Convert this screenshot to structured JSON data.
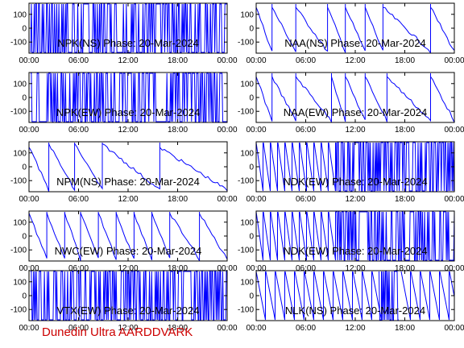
{
  "footer": {
    "text": "Dunedin Ultra AARDDVARK",
    "color": "#cc0000"
  },
  "colors": {
    "trace": "#0000ff",
    "axis": "#000000"
  },
  "chart_data": [
    {
      "type": "line",
      "title": "NPK(NS) Phase: 20-Mar-2024",
      "x_ticks": [
        "00:00",
        "06:00",
        "12:00",
        "18:00",
        "00:00"
      ],
      "y_ticks": [
        "100",
        "0",
        "-100"
      ],
      "ylim": [
        -180,
        180
      ],
      "pattern": "dense",
      "segments": [
        [
          0.03,
          0.5,
          1.0
        ]
      ]
    },
    {
      "type": "line",
      "title": "NAA(NS) Phase: 20-Mar-2024",
      "x_ticks": [
        "00:00",
        "06:00",
        "12:00",
        "18:00",
        "00:00"
      ],
      "y_ticks": [
        "100",
        "0",
        "-100"
      ],
      "ylim": [
        -180,
        180
      ],
      "pattern": "mixed",
      "segments": [
        [
          0.0,
          0.5,
          0.08
        ],
        [
          0.08,
          0.5,
          0.2
        ],
        [
          0.2,
          0.5,
          0.36
        ],
        [
          0.36,
          0.5,
          0.45
        ],
        [
          0.45,
          0.5,
          0.55
        ],
        [
          0.55,
          0.5,
          0.64
        ],
        [
          0.64,
          0.5,
          0.88
        ],
        [
          0.88,
          0.5,
          1.0
        ]
      ]
    },
    {
      "type": "line",
      "title": "NPK(EW) Phase: 20-Mar-2024",
      "x_ticks": [
        "00:00",
        "06:00",
        "12:00",
        "18:00",
        "00:00"
      ],
      "y_ticks": [
        "100",
        "0",
        "-100"
      ],
      "ylim": [
        -180,
        180
      ],
      "pattern": "dense",
      "segments": [
        [
          0.0,
          0.5,
          1.0
        ]
      ]
    },
    {
      "type": "line",
      "title": "NAA(EW) Phase: 20-Mar-2024",
      "x_ticks": [
        "00:00",
        "06:00",
        "12:00",
        "18:00",
        "00:00"
      ],
      "y_ticks": [
        "100",
        "0",
        "-100"
      ],
      "ylim": [
        -180,
        180
      ],
      "pattern": "mixed",
      "segments": [
        [
          0.0,
          0.5,
          0.08
        ],
        [
          0.08,
          0.5,
          0.2
        ],
        [
          0.2,
          0.5,
          0.38
        ],
        [
          0.38,
          0.5,
          0.45
        ],
        [
          0.45,
          0.5,
          0.55
        ],
        [
          0.55,
          0.5,
          0.66
        ],
        [
          0.66,
          0.5,
          0.88
        ],
        [
          0.88,
          0.5,
          1.0
        ]
      ]
    },
    {
      "type": "line",
      "title": "NPM(NS) Phase: 20-Mar-2024",
      "x_ticks": [
        "00:00",
        "06:00",
        "12:00",
        "18:00",
        "00:00"
      ],
      "y_ticks": [
        "100",
        "0",
        "-100"
      ],
      "ylim": [
        -180,
        180
      ],
      "pattern": "sawtooth",
      "segments": [
        [
          0.0,
          0.25,
          0.1
        ],
        [
          0.1,
          0.9,
          0.23
        ],
        [
          0.23,
          0.95,
          0.37
        ],
        [
          0.37,
          0.9,
          0.66
        ],
        [
          0.66,
          0.2,
          1.0
        ]
      ]
    },
    {
      "type": "line",
      "title": "NDK(EW) Phase: 20-Mar-2024",
      "x_ticks": [
        "00:00",
        "06:00",
        "12:00",
        "18:00",
        "00:00"
      ],
      "y_ticks": [
        "100",
        "0",
        "-100"
      ],
      "ylim": [
        -180,
        180
      ],
      "pattern": "sawtooth-dense",
      "segments": [
        [
          0.0,
          0.5,
          0.4
        ],
        [
          0.4,
          0.5,
          1.0
        ]
      ]
    },
    {
      "type": "line",
      "title": "NWC(EW) Phase: 20-Mar-2024",
      "x_ticks": [
        "00:00",
        "06:00",
        "12:00",
        "18:00",
        "00:00"
      ],
      "y_ticks": [
        "100",
        "0",
        "-100"
      ],
      "ylim": [
        -180,
        180
      ],
      "pattern": "sawtooth",
      "segments": [
        [
          0.0,
          0.9,
          0.09
        ],
        [
          0.09,
          0.95,
          0.18
        ],
        [
          0.18,
          0.95,
          0.26
        ],
        [
          0.26,
          0.95,
          0.35
        ],
        [
          0.35,
          0.95,
          0.44
        ],
        [
          0.44,
          0.95,
          0.53
        ],
        [
          0.53,
          0.95,
          0.62
        ],
        [
          0.62,
          0.95,
          0.71
        ],
        [
          0.71,
          0.9,
          0.86
        ],
        [
          0.86,
          0.8,
          1.0
        ]
      ]
    },
    {
      "type": "line",
      "title": "NDK(EW) Phase: 20-Mar-2024",
      "x_ticks": [
        "00:00",
        "06:00",
        "12:00",
        "18:00",
        "00:00"
      ],
      "y_ticks": [
        "100",
        "0",
        "-100"
      ],
      "ylim": [
        -180,
        180
      ],
      "pattern": "sawtooth-dense",
      "segments": [
        [
          0.0,
          0.5,
          0.4
        ],
        [
          0.4,
          0.5,
          1.0
        ]
      ]
    },
    {
      "type": "line",
      "title": "VTX(EW) Phase: 20-Mar-2024",
      "x_ticks": [
        "00:00",
        "06:00",
        "12:00",
        "18:00",
        "00:00"
      ],
      "y_ticks": [
        "100",
        "0",
        "-100"
      ],
      "ylim": [
        -180,
        180
      ],
      "pattern": "dense",
      "segments": [
        [
          0.0,
          0.5,
          1.0
        ]
      ]
    },
    {
      "type": "line",
      "title": "NLK(NS) Phase: 20-Mar-2024",
      "x_ticks": [
        "00:00",
        "06:00",
        "12:00",
        "18:00",
        "00:00"
      ],
      "y_ticks": [
        "100",
        "0",
        "-100"
      ],
      "ylim": [
        -180,
        180
      ],
      "pattern": "sawtooth-nlk",
      "segments": [
        [
          0.0,
          0.5,
          1.0
        ]
      ]
    }
  ]
}
